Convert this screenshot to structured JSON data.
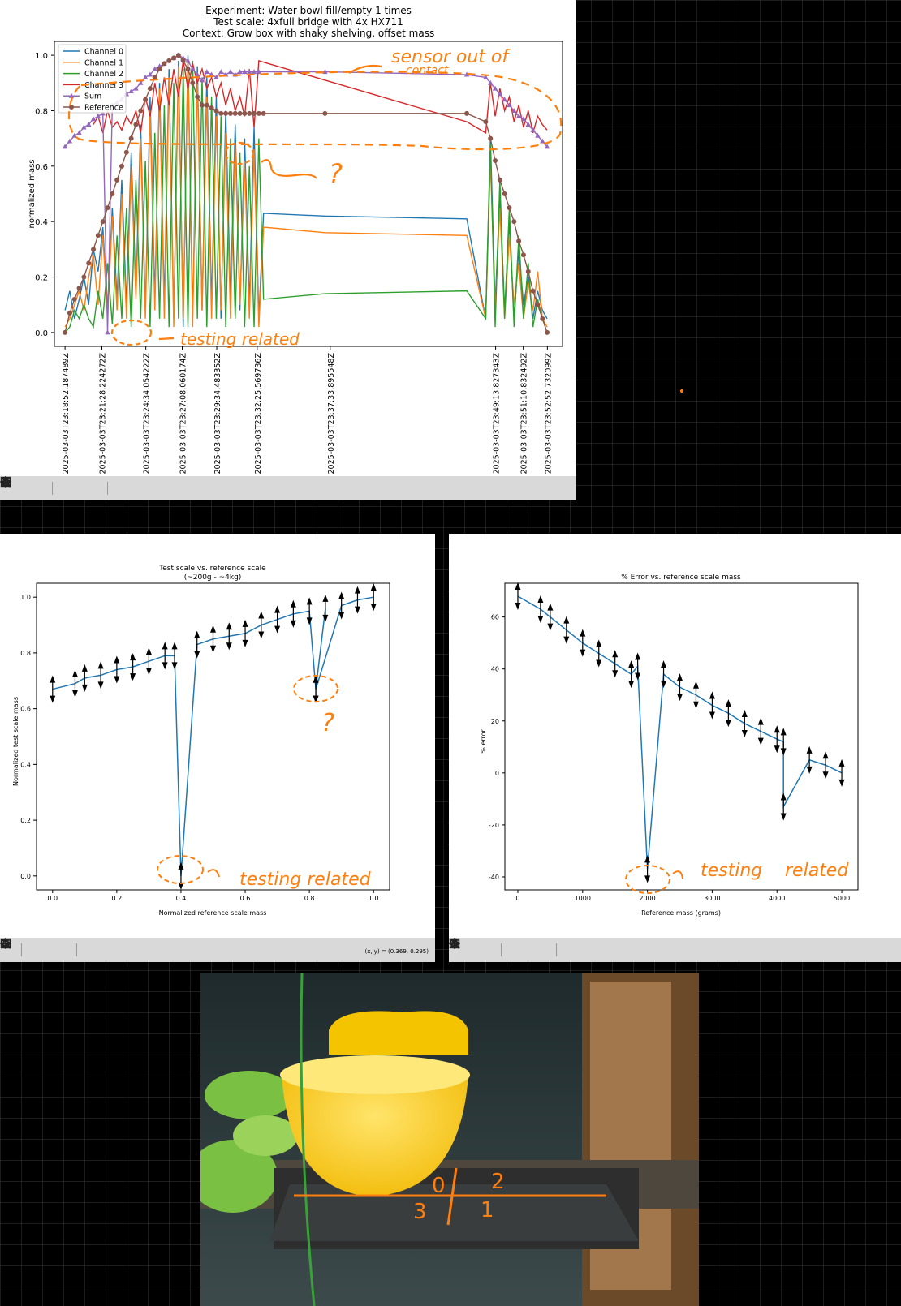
{
  "chart_data": [
    {
      "type": "line",
      "title": "Experiment: Water bowl fill/empty 1 times",
      "subtitle": "Test scale: 4xfull bridge with 4x HX711",
      "subtitle2": "Context: Grow box with shaky shelving, offset mass",
      "ylabel": "normalized mass",
      "xlabel": "",
      "ylim": [
        -0.05,
        1.05
      ],
      "yticks": [
        "0.0",
        "0.2",
        "0.4",
        "0.6",
        "0.8",
        "1.0"
      ],
      "xticks": [
        "2025-03-03T23:18:52.187489Z",
        "2025-03-03T23:21:28.224272Z",
        "2025-03-03T23:24:34.054222Z",
        "2025-03-03T23:27:08.060174Z",
        "2025-03-03T23:29:34.483352Z",
        "2025-03-03T23:32:25.569736Z",
        "2025-03-03T23:37:33.895548Z",
        "2025-03-03T23:49:13.827343Z",
        "2025-03-03T23:51:10.832492Z",
        "2025-03-03T23:52:52.732099Z"
      ],
      "xtick_seconds": [
        0,
        156,
        342,
        496,
        642,
        813,
        1122,
        1822,
        1939,
        2041
      ],
      "xlim_seconds": [
        -45,
        2105
      ],
      "legend": [
        "Channel 0",
        "Channel 1",
        "Channel 2",
        "Channel 3",
        "Sum",
        "Reference"
      ],
      "legend_position": "top-left",
      "series": [
        {
          "name": "Channel 0",
          "color": "#1f77b4",
          "x": [
            0,
            20,
            40,
            60,
            80,
            100,
            120,
            140,
            160,
            180,
            200,
            220,
            240,
            260,
            280,
            300,
            320,
            340,
            360,
            380,
            400,
            420,
            440,
            460,
            480,
            500,
            520,
            540,
            560,
            580,
            600,
            620,
            640,
            660,
            680,
            700,
            720,
            740,
            760,
            780,
            800,
            820,
            840,
            1100,
            1700,
            1780,
            1800,
            1820,
            1840,
            1860,
            1880,
            1900,
            1920,
            1940,
            1960,
            1980,
            2000,
            2020,
            2040
          ],
          "y": [
            0.08,
            0.15,
            0.05,
            0.12,
            0.2,
            0.1,
            0.3,
            0.22,
            0.38,
            0.08,
            0.45,
            0.12,
            0.55,
            0.1,
            0.65,
            0.15,
            0.75,
            0.08,
            0.85,
            0.12,
            0.9,
            0.1,
            0.95,
            0.05,
            0.98,
            0.02,
            1.0,
            0.05,
            0.96,
            0.08,
            0.92,
            0.1,
            0.85,
            0.05,
            0.8,
            0.12,
            0.75,
            0.08,
            0.7,
            0.1,
            0.74,
            0.05,
            0.43,
            0.42,
            0.41,
            0.05,
            0.7,
            0.1,
            0.5,
            0.08,
            0.4,
            0.05,
            0.3,
            0.1,
            0.2,
            0.05,
            0.15,
            0.08,
            0.05
          ]
        },
        {
          "name": "Channel 1",
          "color": "#ff7f0e",
          "x": [
            0,
            20,
            40,
            60,
            80,
            100,
            120,
            140,
            160,
            180,
            200,
            220,
            240,
            260,
            280,
            300,
            320,
            340,
            360,
            380,
            400,
            420,
            440,
            460,
            480,
            500,
            520,
            540,
            560,
            580,
            600,
            620,
            640,
            660,
            680,
            700,
            720,
            740,
            760,
            780,
            800,
            820,
            840,
            1100,
            1700,
            1780,
            1800,
            1820,
            1840,
            1860,
            1880,
            1900,
            1920,
            1940,
            1960,
            1980,
            2000,
            2020,
            2040
          ],
          "y": [
            0.02,
            0.05,
            0.1,
            0.15,
            0.08,
            0.2,
            0.28,
            0.1,
            0.35,
            0.05,
            0.42,
            0.08,
            0.5,
            0.05,
            0.6,
            0.12,
            0.7,
            0.05,
            0.8,
            0.08,
            0.88,
            0.05,
            0.92,
            0.02,
            0.96,
            0.05,
            0.98,
            0.02,
            0.92,
            0.08,
            0.85,
            0.05,
            0.78,
            0.08,
            0.72,
            0.05,
            0.68,
            0.1,
            0.62,
            0.05,
            0.66,
            0.02,
            0.38,
            0.36,
            0.35,
            0.05,
            0.62,
            0.08,
            0.45,
            0.05,
            0.35,
            0.1,
            0.25,
            0.05,
            0.18,
            0.08,
            0.22,
            0.05,
            0.02
          ]
        },
        {
          "name": "Channel 2",
          "color": "#2ca02c",
          "x": [
            0,
            20,
            40,
            60,
            80,
            100,
            120,
            140,
            160,
            180,
            200,
            220,
            240,
            260,
            280,
            300,
            320,
            340,
            360,
            380,
            400,
            420,
            440,
            460,
            480,
            500,
            520,
            540,
            560,
            580,
            600,
            620,
            640,
            660,
            680,
            700,
            720,
            740,
            760,
            780,
            800,
            820,
            840,
            1100,
            1700,
            1780,
            1800,
            1820,
            1840,
            1860,
            1880,
            1900,
            1920,
            1940,
            1960,
            1980,
            2000,
            2020,
            2040
          ],
          "y": [
            0.0,
            0.02,
            0.08,
            0.05,
            0.1,
            0.05,
            0.02,
            0.15,
            0.05,
            0.25,
            0.03,
            0.35,
            0.05,
            0.45,
            0.02,
            0.55,
            0.05,
            0.62,
            0.02,
            0.72,
            0.05,
            0.82,
            0.02,
            0.9,
            0.05,
            0.95,
            0.02,
            0.98,
            0.05,
            0.92,
            0.02,
            0.85,
            0.05,
            0.78,
            0.02,
            0.7,
            0.05,
            0.65,
            0.02,
            0.6,
            0.02,
            0.7,
            0.12,
            0.14,
            0.15,
            0.05,
            0.68,
            0.02,
            0.55,
            0.05,
            0.45,
            0.02,
            0.35,
            0.05,
            0.25,
            0.02,
            0.12,
            0.05,
            0.0
          ]
        },
        {
          "name": "Channel 3",
          "color": "#d62728",
          "x": [
            120,
            140,
            160,
            180,
            200,
            220,
            240,
            260,
            280,
            300,
            320,
            340,
            360,
            380,
            400,
            420,
            440,
            460,
            480,
            500,
            520,
            540,
            560,
            580,
            600,
            620,
            640,
            660,
            680,
            700,
            720,
            740,
            760,
            780,
            800,
            820,
            1700,
            1780,
            1800,
            1820,
            1840,
            1860,
            1880,
            1900,
            1920,
            1940,
            1960,
            1980,
            2000,
            2020,
            2040
          ],
          "y": [
            0.75,
            0.78,
            0.72,
            0.8,
            0.74,
            0.76,
            0.73,
            0.78,
            0.75,
            0.8,
            0.72,
            0.85,
            0.78,
            0.9,
            0.8,
            0.92,
            0.82,
            0.95,
            0.85,
            0.98,
            0.88,
            0.97,
            0.9,
            0.95,
            0.88,
            0.92,
            0.85,
            0.9,
            0.82,
            0.88,
            0.8,
            0.85,
            0.78,
            0.95,
            0.74,
            0.98,
            0.76,
            0.72,
            0.9,
            0.78,
            0.88,
            0.8,
            0.85,
            0.76,
            0.82,
            0.74,
            0.8,
            0.72,
            0.78,
            0.75,
            0.73
          ]
        },
        {
          "name": "Sum",
          "color": "#9467bd",
          "marker": "triangle",
          "x": [
            0,
            20,
            40,
            60,
            80,
            100,
            120,
            140,
            160,
            180,
            200,
            220,
            240,
            260,
            280,
            300,
            320,
            340,
            360,
            380,
            400,
            420,
            440,
            460,
            480,
            500,
            520,
            540,
            560,
            580,
            600,
            620,
            640,
            660,
            680,
            700,
            720,
            740,
            760,
            780,
            800,
            820,
            1100,
            1700,
            1780,
            1800,
            1820,
            1840,
            1860,
            1880,
            1900,
            1920,
            1940,
            1960,
            1980,
            2000,
            2020,
            2040
          ],
          "y": [
            0.67,
            0.69,
            0.71,
            0.72,
            0.74,
            0.75,
            0.77,
            0.78,
            0.79,
            0.0,
            0.82,
            0.83,
            0.84,
            0.86,
            0.87,
            0.88,
            0.9,
            0.92,
            0.93,
            0.95,
            0.96,
            0.97,
            0.98,
            0.99,
            1.0,
            0.99,
            0.98,
            0.95,
            0.93,
            0.91,
            0.94,
            0.93,
            0.92,
            0.94,
            0.93,
            0.94,
            0.93,
            0.94,
            0.94,
            0.94,
            0.94,
            0.94,
            0.94,
            0.93,
            0.92,
            0.9,
            0.88,
            0.86,
            0.84,
            0.82,
            0.8,
            0.78,
            0.77,
            0.75,
            0.73,
            0.71,
            0.69,
            0.67
          ]
        },
        {
          "name": "Reference",
          "color": "#8c564b",
          "marker": "circle",
          "x": [
            0,
            20,
            40,
            60,
            80,
            100,
            120,
            140,
            160,
            180,
            200,
            220,
            240,
            260,
            280,
            300,
            320,
            340,
            360,
            380,
            400,
            420,
            440,
            460,
            480,
            500,
            520,
            540,
            560,
            580,
            600,
            620,
            640,
            660,
            680,
            700,
            720,
            740,
            760,
            780,
            800,
            820,
            840,
            1100,
            1700,
            1780,
            1800,
            1820,
            1840,
            1860,
            1880,
            1900,
            1920,
            1940,
            1960,
            1980,
            2000,
            2020,
            2040
          ],
          "y": [
            0.0,
            0.07,
            0.12,
            0.16,
            0.2,
            0.25,
            0.3,
            0.35,
            0.4,
            0.45,
            0.5,
            0.55,
            0.6,
            0.65,
            0.7,
            0.75,
            0.8,
            0.84,
            0.88,
            0.92,
            0.95,
            0.97,
            0.98,
            0.99,
            1.0,
            0.98,
            0.95,
            0.9,
            0.85,
            0.82,
            0.82,
            0.81,
            0.8,
            0.79,
            0.79,
            0.79,
            0.79,
            0.79,
            0.79,
            0.79,
            0.79,
            0.79,
            0.79,
            0.79,
            0.79,
            0.76,
            0.7,
            0.62,
            0.55,
            0.5,
            0.45,
            0.4,
            0.33,
            0.28,
            0.22,
            0.15,
            0.1,
            0.05,
            0.0
          ]
        }
      ]
    },
    {
      "type": "line",
      "title": "Test scale vs. reference scale",
      "subtitle": "(~200g - ~4kg)",
      "xlabel": "Normalized reference scale mass",
      "ylabel": "Normalized test scale mass",
      "xlim": [
        -0.05,
        1.05
      ],
      "ylim": [
        -0.05,
        1.05
      ],
      "xticks": [
        "0.0",
        "0.2",
        "0.4",
        "0.6",
        "0.8",
        "1.0"
      ],
      "yticks": [
        "0.0",
        "0.2",
        "0.4",
        "0.6",
        "0.8",
        "1.0"
      ],
      "color": "#1f77b4",
      "x": [
        0.0,
        0.07,
        0.1,
        0.15,
        0.2,
        0.25,
        0.3,
        0.35,
        0.38,
        0.4,
        0.45,
        0.5,
        0.55,
        0.6,
        0.65,
        0.7,
        0.75,
        0.8,
        0.82,
        0.85,
        0.82,
        0.9,
        0.95,
        1.0
      ],
      "y": [
        0.67,
        0.69,
        0.71,
        0.72,
        0.74,
        0.75,
        0.77,
        0.79,
        0.79,
        0.0,
        0.83,
        0.85,
        0.86,
        0.87,
        0.9,
        0.92,
        0.94,
        0.95,
        0.67,
        0.96,
        0.67,
        0.97,
        0.99,
        1.0
      ]
    },
    {
      "type": "line",
      "title": "% Error vs. reference scale mass",
      "xlabel": "Reference mass (grams)",
      "ylabel": "% error",
      "xlim": [
        -200,
        5250
      ],
      "ylim": [
        -45,
        73
      ],
      "xticks": [
        "0",
        "1000",
        "2000",
        "3000",
        "4000",
        "5000"
      ],
      "yticks": [
        "-40",
        "-20",
        "0",
        "20",
        "40",
        "60"
      ],
      "color": "#1f77b4",
      "x": [
        0,
        350,
        500,
        750,
        1000,
        1250,
        1500,
        1750,
        1850,
        2000,
        2250,
        2500,
        2750,
        3000,
        3250,
        3500,
        3750,
        4000,
        4100,
        4100,
        4500,
        4750,
        5000
      ],
      "y": [
        68,
        63,
        60,
        55,
        50,
        46,
        42,
        38,
        41,
        -37,
        38,
        33,
        30,
        26,
        23,
        19,
        16,
        13,
        12,
        -13,
        5,
        3,
        0
      ]
    }
  ],
  "annotations": {
    "top": [
      "sensor out of",
      "contact",
      "?",
      "testing related"
    ],
    "left": [
      "?",
      "testing related"
    ],
    "right": [
      "testing",
      "related"
    ],
    "photo_marks": [
      "0",
      "2",
      "3",
      "1"
    ]
  },
  "windows": {
    "bottom_left": {
      "coordinate_readout": "(x, y) = (0.369, 0.295)"
    }
  },
  "toolbar_icons": [
    "home-icon",
    "back-arrow-icon",
    "forward-arrow-icon",
    "pan-icon",
    "zoom-icon",
    "configure-subplots-icon",
    "save-icon"
  ],
  "colors": {
    "annotation": "#ff7f0e",
    "toolbar": "#d9d9d9",
    "background": "#000000",
    "grid": "#3a3a3a"
  }
}
